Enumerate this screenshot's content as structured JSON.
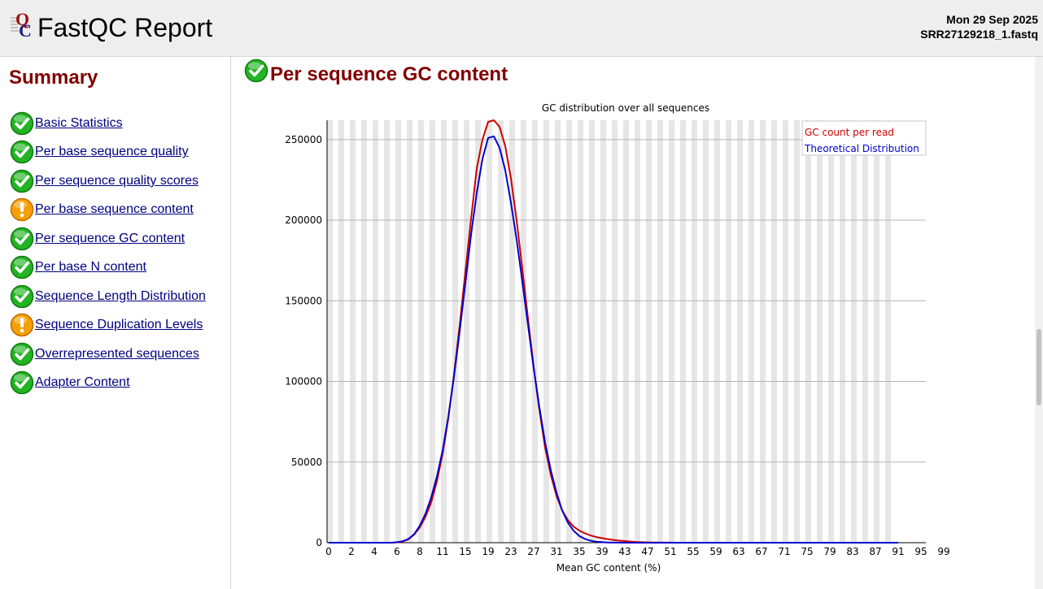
{
  "header": {
    "title": "FastQC Report",
    "date": "Mon 29 Sep 2025",
    "filename": "SRR27129218_1.fastq",
    "logo_icon": "fastqc-logo-icon"
  },
  "sidebar": {
    "summary_title": "Summary",
    "modules": [
      {
        "label": "Basic Statistics",
        "status": "pass"
      },
      {
        "label": "Per base sequence quality",
        "status": "pass"
      },
      {
        "label": "Per sequence quality scores",
        "status": "pass"
      },
      {
        "label": "Per base sequence content",
        "status": "warn"
      },
      {
        "label": "Per sequence GC content",
        "status": "pass"
      },
      {
        "label": "Per base N content",
        "status": "pass"
      },
      {
        "label": "Sequence Length Distribution",
        "status": "pass"
      },
      {
        "label": "Sequence Duplication Levels",
        "status": "warn"
      },
      {
        "label": "Overrepresented sequences",
        "status": "pass"
      },
      {
        "label": "Adapter Content",
        "status": "pass"
      }
    ]
  },
  "main": {
    "section_title": "Per sequence GC content",
    "section_status": "pass"
  },
  "colors": {
    "pass": "#22b422",
    "warn": "#f5a000",
    "title": "#800000",
    "link": "#000080",
    "gc_count": "#cc0000",
    "theoretical": "#0000cc",
    "stripe": "#e6e6e6",
    "gridline": "#b4b4b4"
  },
  "chart_data": {
    "type": "line",
    "title": "GC distribution over all sequences",
    "xlabel": "Mean GC content (%)",
    "ylabel": "",
    "xlim": [
      0,
      100
    ],
    "ylim": [
      0,
      262000
    ],
    "x_ticks": [
      "0",
      "2",
      "4",
      "6",
      "8",
      "11",
      "15",
      "19",
      "23",
      "27",
      "31",
      "35",
      "39",
      "43",
      "47",
      "51",
      "55",
      "59",
      "63",
      "67",
      "71",
      "75",
      "79",
      "83",
      "87",
      "91",
      "95",
      "99"
    ],
    "y_ticks": [
      0,
      50000,
      100000,
      150000,
      200000,
      250000
    ],
    "legend_position": "top-right",
    "series": [
      {
        "name": "GC count per read",
        "color": "#cc0000",
        "x": [
          0,
          1,
          2,
          3,
          4,
          5,
          6,
          7,
          8,
          9,
          10,
          11,
          12,
          13,
          14,
          15,
          16,
          17,
          18,
          19,
          20,
          21,
          22,
          23,
          24,
          25,
          26,
          27,
          28,
          29,
          30,
          31,
          32,
          33,
          34,
          35,
          36,
          37,
          38,
          39,
          40,
          41,
          42,
          43,
          44,
          45,
          46,
          47,
          48,
          49,
          50,
          51,
          52,
          53,
          54,
          55,
          56,
          57,
          58,
          59,
          60,
          61,
          62,
          63,
          64,
          65,
          66,
          67,
          68,
          69,
          70,
          71,
          72,
          73,
          74,
          75,
          76,
          77,
          78,
          79,
          80,
          81,
          82,
          83,
          84,
          85,
          86,
          87,
          88,
          89,
          90,
          91,
          92,
          93,
          94,
          95,
          96,
          97,
          98,
          99,
          100
        ],
        "values": [
          0,
          0,
          0,
          0,
          0,
          0,
          0,
          0,
          0,
          0,
          0,
          0,
          200,
          700,
          2000,
          5000,
          9500,
          16000,
          25000,
          38000,
          55000,
          77000,
          104000,
          135000,
          168000,
          201000,
          232000,
          250000,
          261000,
          262000,
          258000,
          246000,
          226000,
          200000,
          170000,
          139000,
          109000,
          82000,
          59000,
          42000,
          29000,
          20000,
          14000,
          10000,
          7500,
          5800,
          4500,
          3500,
          2800,
          2200,
          1700,
          1300,
          1000,
          700,
          450,
          300,
          200,
          120,
          80,
          50,
          30,
          20,
          10,
          5,
          0,
          0,
          0,
          0,
          0,
          0,
          0,
          0,
          0,
          0,
          0,
          0,
          0,
          0,
          0,
          0,
          0,
          0,
          0,
          0,
          0,
          0,
          0,
          0,
          0,
          0,
          0,
          0,
          0,
          0,
          0,
          0,
          0,
          0,
          0,
          0,
          0
        ]
      },
      {
        "name": "Theoretical Distribution",
        "color": "#0000cc",
        "x": [
          0,
          1,
          2,
          3,
          4,
          5,
          6,
          7,
          8,
          9,
          10,
          11,
          12,
          13,
          14,
          15,
          16,
          17,
          18,
          19,
          20,
          21,
          22,
          23,
          24,
          25,
          26,
          27,
          28,
          29,
          30,
          31,
          32,
          33,
          34,
          35,
          36,
          37,
          38,
          39,
          40,
          41,
          42,
          43,
          44,
          45,
          46,
          47,
          48,
          49,
          50,
          51,
          52,
          53,
          54,
          55,
          56,
          57,
          58,
          59,
          60,
          61,
          62,
          63,
          64,
          65,
          66,
          67,
          68,
          69,
          70,
          71,
          72,
          73,
          74,
          75,
          76,
          77,
          78,
          79,
          80,
          81,
          82,
          83,
          84,
          85,
          86,
          87,
          88,
          89,
          90,
          91,
          92,
          93,
          94,
          95,
          96,
          97,
          98,
          99,
          100
        ],
        "values": [
          0,
          0,
          0,
          0,
          0,
          0,
          0,
          0,
          0,
          0,
          0,
          0,
          300,
          900,
          2300,
          5300,
          10500,
          18000,
          28000,
          41000,
          57000,
          78000,
          103000,
          131000,
          161000,
          191000,
          217000,
          238000,
          251000,
          252000,
          245000,
          231000,
          211000,
          188000,
          162000,
          135000,
          108000,
          84000,
          62000,
          45000,
          31000,
          20000,
          12500,
          7400,
          4200,
          2300,
          1200,
          600,
          300,
          150,
          70,
          30,
          10,
          0,
          0,
          0,
          0,
          0,
          0,
          0,
          0,
          0,
          0,
          0,
          0,
          0,
          0,
          0,
          0,
          0,
          0,
          0,
          0,
          0,
          0,
          0,
          0,
          0,
          0,
          0,
          0,
          0,
          0,
          0,
          0,
          0,
          0,
          0,
          0,
          0,
          0,
          0,
          0,
          0,
          0,
          0,
          0,
          0,
          0,
          0,
          0
        ]
      }
    ]
  }
}
